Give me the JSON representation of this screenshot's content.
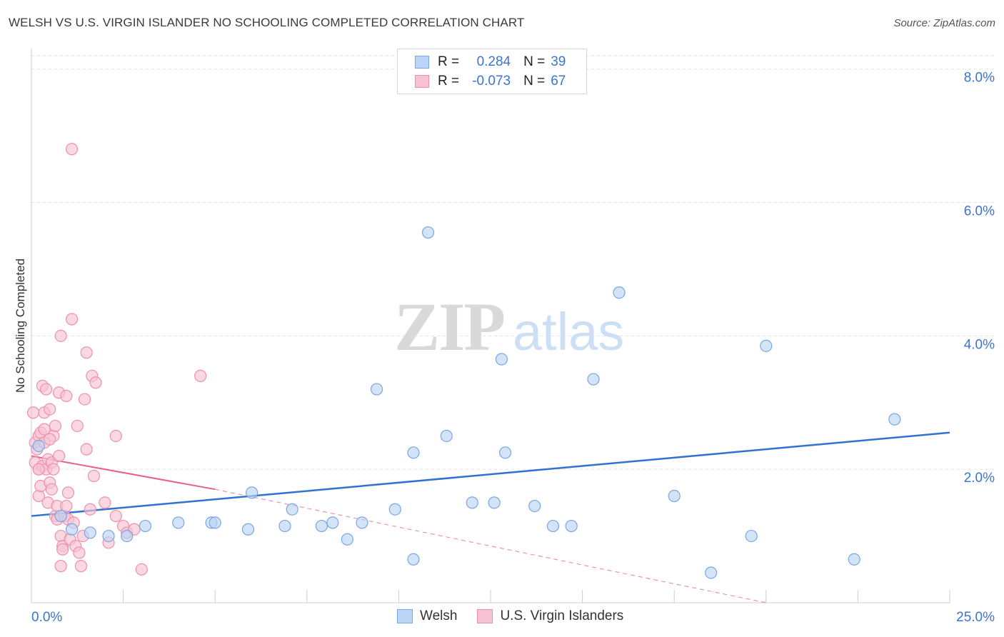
{
  "title": "WELSH VS U.S. VIRGIN ISLANDER NO SCHOOLING COMPLETED CORRELATION CHART",
  "source": "Source: ZipAtlas.com",
  "watermark": {
    "zip": "ZIP",
    "atlas": "atlas"
  },
  "colors": {
    "welsh_fill": "#bcd4f5",
    "welsh_stroke": "#7aa6e3",
    "welsh_line": "#2f72d2",
    "vi_fill": "#f7c3d3",
    "vi_stroke": "#ee8fae",
    "vi_line": "#e8608c",
    "axis_label": "#3b74d0",
    "grid": "#e3e3e3"
  },
  "legend": {
    "welsh": {
      "r_label": "R =",
      "r_value": "0.284",
      "n_label": "N =",
      "n_value": "39"
    },
    "vi": {
      "r_label": "R =",
      "r_value": "-0.073",
      "n_label": "N =",
      "n_value": "67"
    }
  },
  "chart_data": {
    "type": "scatter",
    "title": "WELSH VS U.S. VIRGIN ISLANDER NO SCHOOLING COMPLETED CORRELATION CHART",
    "xlabel": "",
    "ylabel": "No Schooling Completed",
    "xlim": [
      0,
      25
    ],
    "ylim": [
      0,
      8.2
    ],
    "x_tick_labels": [
      "0.0%",
      "25.0%"
    ],
    "y_ticks": [
      2.0,
      4.0,
      6.0,
      8.0
    ],
    "y_tick_labels": [
      "2.0%",
      "4.0%",
      "6.0%",
      "8.0%"
    ],
    "grid": true,
    "legend_position": "top-center",
    "series": [
      {
        "name": "Welsh",
        "points": [
          [
            0.2,
            2.35
          ],
          [
            0.8,
            1.3
          ],
          [
            1.1,
            1.1
          ],
          [
            1.6,
            1.05
          ],
          [
            2.1,
            1.0
          ],
          [
            2.6,
            1.0
          ],
          [
            3.1,
            1.15
          ],
          [
            4.0,
            1.2
          ],
          [
            4.9,
            1.2
          ],
          [
            5.0,
            1.2
          ],
          [
            5.9,
            1.1
          ],
          [
            6.0,
            1.65
          ],
          [
            6.9,
            1.15
          ],
          [
            7.1,
            1.4
          ],
          [
            7.9,
            1.15
          ],
          [
            8.2,
            1.2
          ],
          [
            8.6,
            0.95
          ],
          [
            9.0,
            1.2
          ],
          [
            9.4,
            3.2
          ],
          [
            9.9,
            1.4
          ],
          [
            10.4,
            0.65
          ],
          [
            10.4,
            2.25
          ],
          [
            10.8,
            5.55
          ],
          [
            11.3,
            2.5
          ],
          [
            12.0,
            1.5
          ],
          [
            12.6,
            1.5
          ],
          [
            12.8,
            3.65
          ],
          [
            12.9,
            2.25
          ],
          [
            13.7,
            1.45
          ],
          [
            14.2,
            1.15
          ],
          [
            14.7,
            1.15
          ],
          [
            15.3,
            3.35
          ],
          [
            16.0,
            4.65
          ],
          [
            17.5,
            1.6
          ],
          [
            18.5,
            0.45
          ],
          [
            19.6,
            1.0
          ],
          [
            20.0,
            3.85
          ],
          [
            22.4,
            0.65
          ],
          [
            23.5,
            2.75
          ]
        ],
        "trend": {
          "x_start": 0.0,
          "y_start": 1.3,
          "x_end": 25.0,
          "y_end": 2.55
        }
      },
      {
        "name": "U.S. Virgin Islanders",
        "points": [
          [
            0.05,
            2.85
          ],
          [
            0.1,
            2.4
          ],
          [
            0.1,
            2.1
          ],
          [
            0.15,
            2.3
          ],
          [
            0.2,
            2.0
          ],
          [
            0.2,
            1.6
          ],
          [
            0.2,
            2.5
          ],
          [
            0.25,
            2.55
          ],
          [
            0.25,
            1.75
          ],
          [
            0.3,
            2.05
          ],
          [
            0.3,
            3.25
          ],
          [
            0.35,
            2.85
          ],
          [
            0.35,
            2.4
          ],
          [
            0.4,
            3.2
          ],
          [
            0.4,
            2.0
          ],
          [
            0.45,
            2.15
          ],
          [
            0.45,
            1.5
          ],
          [
            0.5,
            1.8
          ],
          [
            0.5,
            2.9
          ],
          [
            0.55,
            2.1
          ],
          [
            0.55,
            1.7
          ],
          [
            0.6,
            2.5
          ],
          [
            0.6,
            2.0
          ],
          [
            0.65,
            2.65
          ],
          [
            0.65,
            1.3
          ],
          [
            0.7,
            1.45
          ],
          [
            0.7,
            1.25
          ],
          [
            0.75,
            3.15
          ],
          [
            0.75,
            2.2
          ],
          [
            0.8,
            4.0
          ],
          [
            0.8,
            1.0
          ],
          [
            0.8,
            0.55
          ],
          [
            0.85,
            0.85
          ],
          [
            0.85,
            0.8
          ],
          [
            0.9,
            1.3
          ],
          [
            0.95,
            1.45
          ],
          [
            0.95,
            3.1
          ],
          [
            1.0,
            1.65
          ],
          [
            1.0,
            1.25
          ],
          [
            1.05,
            0.95
          ],
          [
            1.1,
            6.8
          ],
          [
            1.1,
            4.25
          ],
          [
            1.15,
            1.2
          ],
          [
            1.2,
            0.85
          ],
          [
            1.25,
            2.65
          ],
          [
            1.3,
            0.75
          ],
          [
            1.35,
            0.55
          ],
          [
            1.4,
            1.0
          ],
          [
            1.45,
            3.05
          ],
          [
            1.5,
            3.75
          ],
          [
            1.5,
            2.3
          ],
          [
            1.6,
            1.4
          ],
          [
            1.65,
            3.4
          ],
          [
            1.7,
            1.9
          ],
          [
            1.75,
            3.3
          ],
          [
            2.0,
            1.5
          ],
          [
            2.1,
            0.9
          ],
          [
            2.3,
            1.3
          ],
          [
            2.3,
            2.5
          ],
          [
            2.5,
            1.15
          ],
          [
            2.6,
            1.05
          ],
          [
            2.8,
            1.1
          ],
          [
            3.0,
            0.5
          ],
          [
            0.2,
            2.0
          ],
          [
            0.35,
            2.6
          ],
          [
            0.5,
            2.45
          ],
          [
            4.6,
            3.4
          ]
        ],
        "trend": {
          "x_start": 0.0,
          "y_start": 2.2,
          "x_end": 5.0,
          "y_end": 1.7,
          "dashed_extension_to": [
            20.0,
            0.0
          ]
        }
      }
    ]
  }
}
